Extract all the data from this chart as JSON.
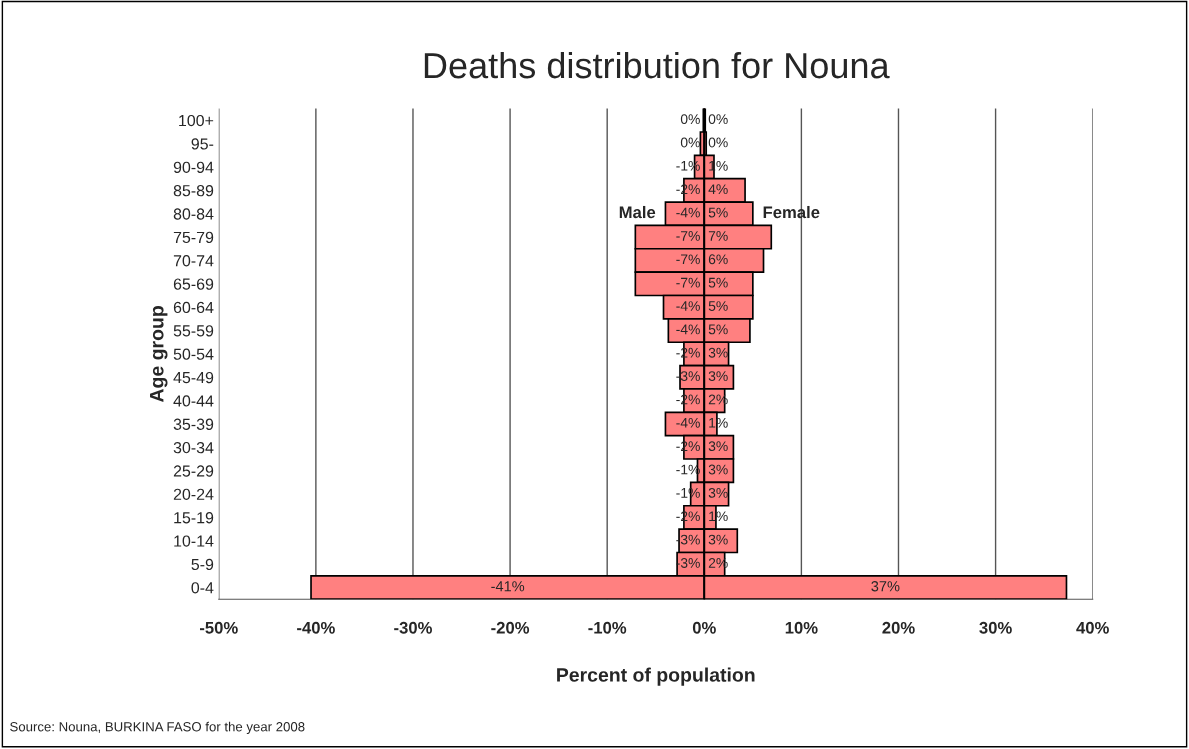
{
  "chart_data": {
    "type": "bar",
    "orientation": "horizontal",
    "title": "Deaths distribution for Nouna",
    "xlabel": "Percent of population",
    "ylabel": "Age group",
    "categories": [
      "100+",
      "95-",
      "90-94",
      "85-89",
      "80-84",
      "75-79",
      "70-74",
      "65-69",
      "60-64",
      "55-59",
      "50-54",
      "45-49",
      "40-44",
      "35-39",
      "30-34",
      "25-29",
      "20-24",
      "15-19",
      "10-14",
      "5-9",
      "0-4"
    ],
    "series": [
      {
        "name": "Male",
        "color": "#ff8080",
        "values": [
          -0.1,
          -0.4,
          -1.0,
          -2.1,
          -4.0,
          -7.1,
          -7.1,
          -7.1,
          -4.2,
          -3.7,
          -2.1,
          -2.5,
          -2.1,
          -4.0,
          -2.1,
          -0.7,
          -1.4,
          -2.1,
          -2.6,
          -2.8,
          -40.5
        ],
        "value_labels": [
          "0%",
          "0%",
          "-1%",
          "-2%",
          "-4%",
          "-7%",
          "-7%",
          "-7%",
          "-4%",
          "-4%",
          "-2%",
          "-3%",
          "-2%",
          "-4%",
          "-2%",
          "-1%",
          "-1%",
          "-2%",
          "-3%",
          "-3%",
          "-41%"
        ]
      },
      {
        "name": "Female",
        "color": "#ff8080",
        "values": [
          0.1,
          0.2,
          1.0,
          4.2,
          5.0,
          6.9,
          6.1,
          5.0,
          5.0,
          4.7,
          2.5,
          3.0,
          2.1,
          1.3,
          3.0,
          3.0,
          2.5,
          1.2,
          3.4,
          2.1,
          37.3
        ],
        "value_labels": [
          "0%",
          "0%",
          "1%",
          "4%",
          "5%",
          "7%",
          "6%",
          "5%",
          "5%",
          "5%",
          "3%",
          "3%",
          "2%",
          "1%",
          "3%",
          "3%",
          "3%",
          "1%",
          "3%",
          "2%",
          "37%"
        ]
      }
    ],
    "xlim": [
      -50,
      40
    ],
    "xticks": [
      {
        "value": -50,
        "label": "-50%"
      },
      {
        "value": -40,
        "label": "-40%"
      },
      {
        "value": -30,
        "label": "-30%"
      },
      {
        "value": -20,
        "label": "-20%"
      },
      {
        "value": -10,
        "label": "-10%"
      },
      {
        "value": 0,
        "label": "0%"
      },
      {
        "value": 10,
        "label": "10%"
      },
      {
        "value": 20,
        "label": "20%"
      },
      {
        "value": 30,
        "label": "30%"
      },
      {
        "value": 40,
        "label": "40%"
      }
    ],
    "grid": "x",
    "legend": false,
    "stacked": true,
    "annotations": [
      "Source: Nouna, BURKINA FASO for the year 2008"
    ]
  }
}
